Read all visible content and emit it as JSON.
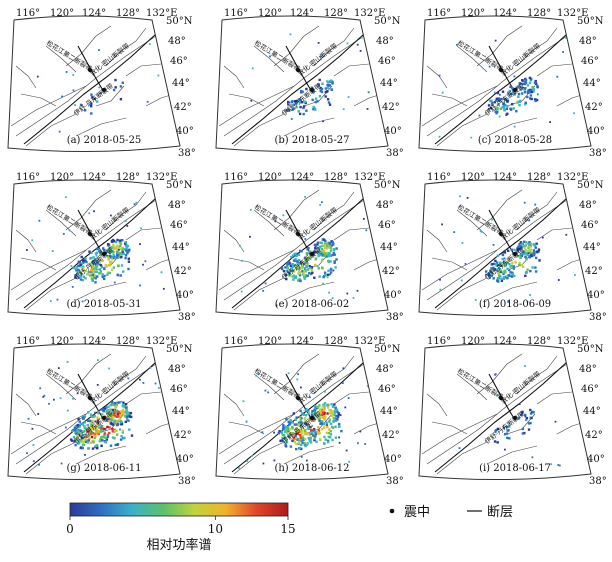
{
  "colors": {
    "ramp": [
      "#2b3a9a",
      "#2f6fc2",
      "#38b3c8",
      "#5cc06a",
      "#bfd43a",
      "#f1b22b",
      "#e0452a",
      "#b01a1e"
    ],
    "outline": "#333333",
    "fault": "#111111"
  },
  "grid_labels": {
    "lon": [
      "116°",
      "120°",
      "124°",
      "128°",
      "132°E"
    ],
    "lat": [
      "50°N",
      "48°",
      "46°",
      "44°",
      "42°",
      "40°",
      "38°"
    ]
  },
  "fault_labels": {
    "songhua": "松花江第二断裂带",
    "tumen": "敦化-密山断裂带",
    "yitong": "伊舒-丹东断裂带"
  },
  "panels": [
    {
      "letter": "(a)",
      "date": "2018-05-25",
      "intensity": 0.05
    },
    {
      "letter": "(b)",
      "date": "2018-05-27",
      "intensity": 0.22
    },
    {
      "letter": "(c)",
      "date": "2018-05-28",
      "intensity": 0.35
    },
    {
      "letter": "(d)",
      "date": "2018-05-31",
      "intensity": 0.7
    },
    {
      "letter": "(e)",
      "date": "2018-06-02",
      "intensity": 0.65
    },
    {
      "letter": "(f)",
      "date": "2018-06-09",
      "intensity": 0.55
    },
    {
      "letter": "(g)",
      "date": "2018-06-11",
      "intensity": 1.0
    },
    {
      "letter": "(h)",
      "date": "2018-06-12",
      "intensity": 0.95
    },
    {
      "letter": "(i)",
      "date": "2018-06-17",
      "intensity": 0.1
    }
  ],
  "legend": {
    "title": "相对功率谱",
    "ticks": [
      "0",
      "10",
      "15"
    ],
    "tick_values": [
      0,
      10,
      15
    ],
    "range": [
      0,
      15
    ],
    "epicenter_label": "震中",
    "fault_label": "断层"
  }
}
